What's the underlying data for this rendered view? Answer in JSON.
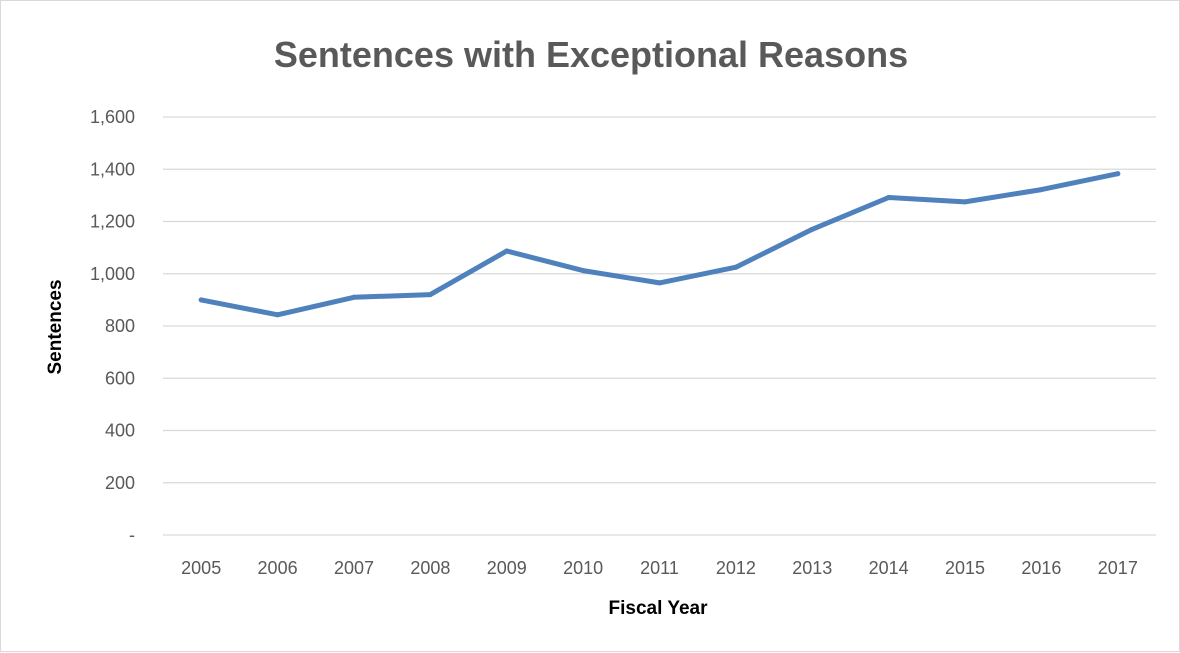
{
  "chart_data": {
    "type": "line",
    "title": "Sentences with Exceptional Reasons",
    "xlabel": "Fiscal Year",
    "ylabel": "Sentences",
    "categories": [
      "2005",
      "2006",
      "2007",
      "2008",
      "2009",
      "2010",
      "2011",
      "2012",
      "2013",
      "2014",
      "2015",
      "2016",
      "2017"
    ],
    "series": [
      {
        "values": [
          900,
          843,
          910,
          920,
          1087,
          1012,
          965,
          1025,
          1170,
          1292,
          1275,
          1322,
          1383
        ]
      }
    ],
    "ylim": [
      0,
      1600
    ],
    "yticks": [
      0,
      200,
      400,
      600,
      800,
      1000,
      1200,
      1400,
      1600
    ],
    "ytick_labels": [
      "-",
      "200",
      "400",
      "600",
      "800",
      "1,000",
      "1,200",
      "1,400",
      "1,600"
    ],
    "grid": true,
    "legend": "none",
    "colors": {
      "line": "#4f81bd",
      "grid": "#d9d9d9",
      "text": "#595959"
    }
  }
}
